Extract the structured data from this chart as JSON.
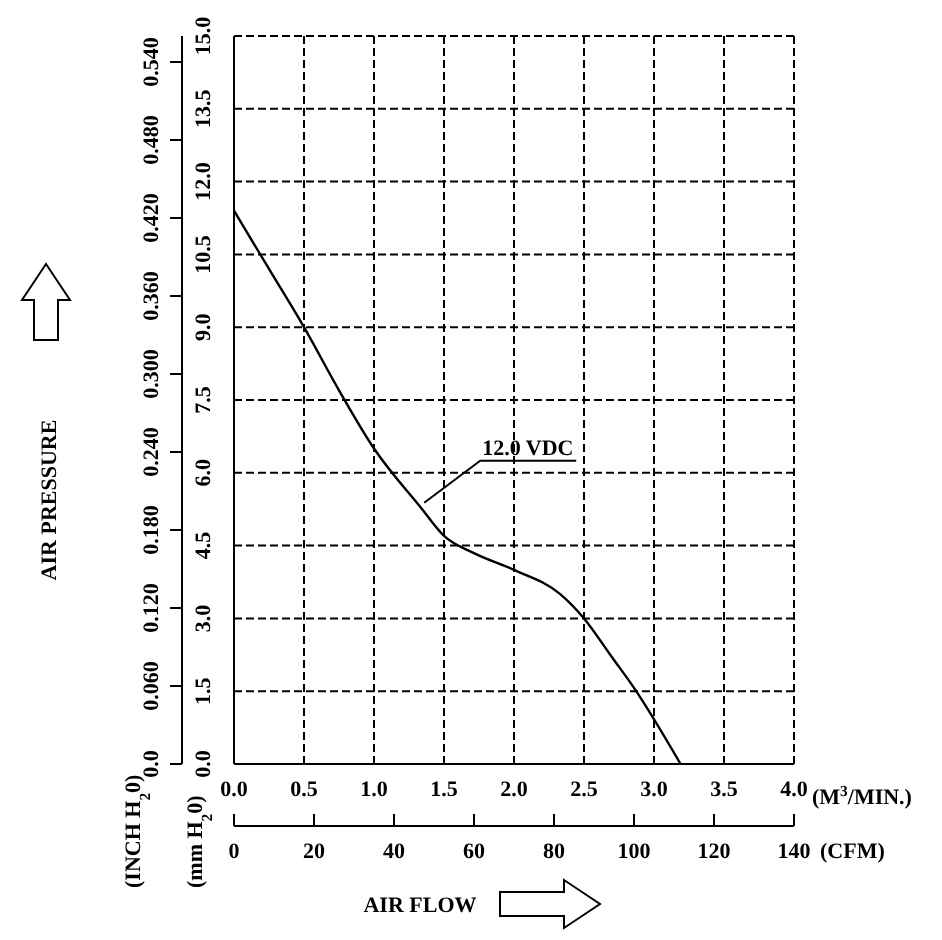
{
  "chart_data": {
    "type": "line",
    "x": [
      0,
      0.25,
      0.5,
      0.75,
      1.0,
      1.33,
      1.5,
      1.71,
      2.0,
      2.33,
      2.5,
      2.7,
      2.85,
      3.19
    ],
    "series": [
      {
        "color": "#000000",
        "values": [
          11.4,
          10.2,
          9.0,
          7.7,
          6.5,
          5.3,
          4.7,
          4.35,
          4.0,
          3.5,
          3.0,
          2.2,
          1.6,
          0
        ]
      }
    ],
    "xlim": [
      0,
      4
    ],
    "xticks": [
      {
        "value": 0,
        "label": "0.0"
      },
      0.5,
      {
        "value": 1,
        "label": "1.0"
      },
      1.5,
      {
        "value": 2,
        "label": "2.0"
      },
      2.5,
      {
        "value": 3,
        "label": "3.0"
      },
      3.5,
      {
        "value": 4,
        "label": "4.0"
      }
    ],
    "x2lim": [
      0,
      140
    ],
    "x2ticks": [
      0,
      20,
      40,
      60,
      80,
      100,
      120,
      140
    ],
    "ylim": [
      0,
      15
    ],
    "yticks": [
      {
        "value": 0,
        "label": "0.0"
      },
      1.5,
      {
        "value": 3,
        "label": "3.0"
      },
      4.5,
      {
        "value": 6,
        "label": "6.0"
      },
      7.5,
      {
        "value": 9,
        "label": "9.0"
      },
      10.5,
      {
        "value": 12,
        "label": "12.0"
      },
      13.5,
      {
        "value": 15,
        "label": "15.0"
      }
    ],
    "y2lim": [
      0,
      0.56
    ],
    "y2ticks": [
      {
        "value": 0,
        "label": "0.0"
      },
      {
        "value": 0.06,
        "label": "0.060"
      },
      {
        "value": 0.12,
        "label": "0.120"
      },
      {
        "value": 0.18,
        "label": "0.180"
      },
      {
        "value": 0.24,
        "label": "0.240"
      },
      {
        "value": 0.3,
        "label": "0.300"
      },
      {
        "value": 0.36,
        "label": "0.360"
      },
      {
        "value": 0.42,
        "label": "0.420"
      },
      {
        "value": 0.48,
        "label": "0.480"
      },
      {
        "value": 0.54,
        "label": "0.540"
      }
    ],
    "xlabel": "(M$^{3}$/MIN.)",
    "x2label": "(CFM)",
    "ylabel": "(mm H$_{2}$0)",
    "y2label": "(INCH H$_{2}$0)",
    "annotations": [
      "AIR PRESSURE",
      "AIR FLOW",
      {
        "text": "12.0 VDC",
        "x": 1.33,
        "y": 5.3
      }
    ],
    "grid": true,
    "marker": "none",
    "line_style": "solid"
  }
}
